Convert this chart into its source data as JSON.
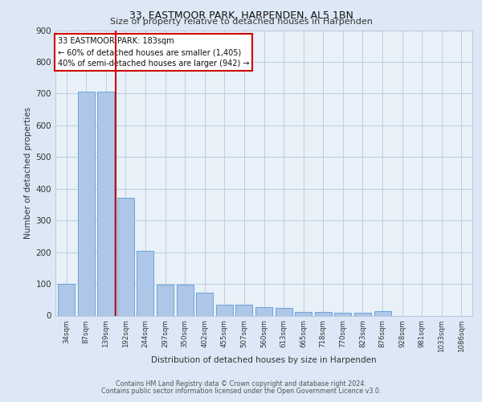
{
  "title1": "33, EASTMOOR PARK, HARPENDEN, AL5 1BN",
  "title2": "Size of property relative to detached houses in Harpenden",
  "xlabel": "Distribution of detached houses by size in Harpenden",
  "ylabel": "Number of detached properties",
  "categories": [
    "34sqm",
    "87sqm",
    "139sqm",
    "192sqm",
    "244sqm",
    "297sqm",
    "350sqm",
    "402sqm",
    "455sqm",
    "507sqm",
    "560sqm",
    "613sqm",
    "665sqm",
    "718sqm",
    "770sqm",
    "823sqm",
    "876sqm",
    "928sqm",
    "981sqm",
    "1033sqm",
    "1086sqm"
  ],
  "values": [
    100,
    707,
    707,
    372,
    205,
    97,
    97,
    72,
    35,
    35,
    27,
    25,
    12,
    12,
    10,
    10,
    13,
    0,
    0,
    0,
    0
  ],
  "bar_color": "#aec6e8",
  "bar_edgecolor": "#5b9bd5",
  "property_line_label": "33 EASTMOOR PARK: 183sqm",
  "annotation_line1": "← 60% of detached houses are smaller (1,405)",
  "annotation_line2": "40% of semi-detached houses are larger (942) →",
  "annotation_box_color": "#ffffff",
  "annotation_box_edgecolor": "#cc0000",
  "vline_color": "#cc0000",
  "ylim": [
    0,
    900
  ],
  "yticks": [
    0,
    100,
    200,
    300,
    400,
    500,
    600,
    700,
    800,
    900
  ],
  "footer1": "Contains HM Land Registry data © Crown copyright and database right 2024.",
  "footer2": "Contains public sector information licensed under the Open Government Licence v3.0.",
  "bg_color": "#dce8f5",
  "plot_bg_color": "#e8f0f8"
}
